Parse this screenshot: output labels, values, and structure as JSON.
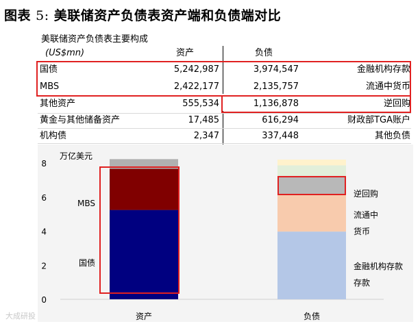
{
  "figure": {
    "title_prefix": "图表",
    "title_num": "5:",
    "title_text": "美联储资产负债表资产端和负债端对比"
  },
  "table": {
    "title": "美联储资产负债表主要构成",
    "unit": "(US$mn)",
    "col_assets": "资产",
    "col_liab": "负债",
    "rows": [
      {
        "asset_name": "国债",
        "asset_value": "5,242,987",
        "liab_value": "3,974,547",
        "liab_name": "金融机构存款"
      },
      {
        "asset_name": "MBS",
        "asset_value": "2,422,177",
        "liab_value": "2,135,757",
        "liab_name": "流通中货币"
      },
      {
        "asset_name": "其他资产",
        "asset_value": "555,534",
        "liab_value": "1,136,878",
        "liab_name": "逆回购"
      },
      {
        "asset_name": "黄金与其他储备资产",
        "asset_value": "17,485",
        "liab_value": "616,294",
        "liab_name": "财政部TGA账户"
      },
      {
        "asset_name": "机构债",
        "asset_value": "2,347",
        "liab_value": "337,448",
        "liab_name": "其他负债"
      }
    ]
  },
  "chart_data": {
    "type": "bar",
    "stacked": true,
    "unit_label": "万亿美元",
    "categories": [
      "资产",
      "负债"
    ],
    "ylim": [
      0,
      8
    ],
    "yticks": [
      "0",
      "2",
      "4",
      "6",
      "8"
    ],
    "stacks": [
      [
        {
          "name": "国债",
          "value": 5.242987,
          "color": "#000080"
        },
        {
          "name": "MBS",
          "value": 2.422177,
          "color": "#800000"
        },
        {
          "name": "其他资产",
          "value": 0.555534,
          "color": "#b0b0b0"
        },
        {
          "name": "黄金与其他储备资产",
          "value": 0.017485,
          "color": "#c8c8c8"
        },
        {
          "name": "机构债",
          "value": 0.002347,
          "color": "#d8d8d8"
        }
      ],
      [
        {
          "name": "金融机构存款",
          "value": 3.974547,
          "color": "#b4c7e7"
        },
        {
          "name": "流通中货币",
          "value": 2.135757,
          "color": "#f8cbad"
        },
        {
          "name": "逆回购",
          "value": 1.136878,
          "color": "#b8b8b8"
        },
        {
          "name": "财政部TGA账户",
          "value": 0.616294,
          "color": "#e2efda"
        },
        {
          "name": "其他负债",
          "value": 0.337448,
          "color": "#fff2cc"
        }
      ]
    ],
    "segment_labels": {
      "assets": [
        "国债",
        "MBS"
      ],
      "liabilities": [
        "金融机构存款",
        "存款",
        "流通中",
        "货币",
        "逆回购"
      ]
    }
  },
  "watermark": "大成研投"
}
